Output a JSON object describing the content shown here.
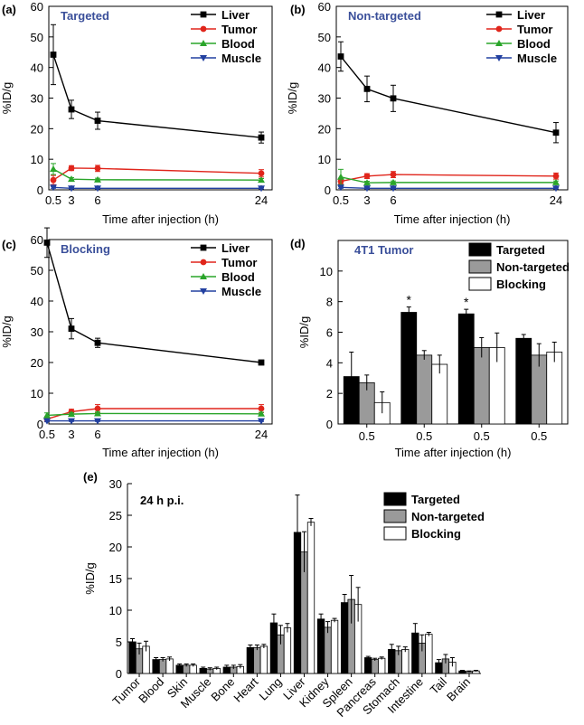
{
  "chart_data": [
    {
      "panel_label": "(a)",
      "type": "line",
      "title": "Targeted",
      "xlabel": "Time after injection (h)",
      "ylabel": "%ID/g",
      "x": [
        0.5,
        3,
        6,
        24
      ],
      "x_ticks": [
        "0.5",
        "3",
        "6",
        "24"
      ],
      "ylim": [
        0,
        60
      ],
      "y_ticks": [
        "0",
        "10",
        "20",
        "30",
        "40",
        "50",
        "60"
      ],
      "legend_position": "top-right",
      "series": [
        {
          "name": "Liver",
          "marker": "square",
          "color": "#000000",
          "values": [
            44.2,
            26.3,
            22.6,
            17.1
          ],
          "errors": [
            9.8,
            3.0,
            2.8,
            1.8
          ]
        },
        {
          "name": "Tumor",
          "marker": "circle",
          "color": "#e0251b",
          "values": [
            3.2,
            7.1,
            7.0,
            5.4
          ],
          "errors": [
            1.5,
            0.8,
            1.0,
            1.2
          ]
        },
        {
          "name": "Blood",
          "marker": "triangle-up",
          "color": "#2aa52a",
          "values": [
            6.8,
            3.5,
            3.3,
            3.2
          ],
          "errors": [
            1.8,
            0.5,
            0.5,
            0.5
          ]
        },
        {
          "name": "Muscle",
          "marker": "triangle-down",
          "color": "#2240a0",
          "values": [
            0.8,
            0.5,
            0.5,
            0.5
          ],
          "errors": [
            0.3,
            0.2,
            0.2,
            0.2
          ]
        }
      ]
    },
    {
      "panel_label": "(b)",
      "type": "line",
      "title": "Non-targeted",
      "xlabel": "Time after injection (h)",
      "ylabel": "%ID/g",
      "x": [
        0.5,
        3,
        6,
        24
      ],
      "x_ticks": [
        "0.5",
        "3",
        "6",
        "24"
      ],
      "ylim": [
        0,
        60
      ],
      "y_ticks": [
        "0",
        "10",
        "20",
        "30",
        "40",
        "50",
        "60"
      ],
      "legend_position": "top-right",
      "series": [
        {
          "name": "Liver",
          "marker": "square",
          "color": "#000000",
          "values": [
            43.6,
            33.0,
            29.9,
            18.7
          ],
          "errors": [
            4.8,
            4.2,
            4.3,
            3.3
          ]
        },
        {
          "name": "Tumor",
          "marker": "circle",
          "color": "#e0251b",
          "values": [
            2.8,
            4.5,
            5.0,
            4.5
          ],
          "errors": [
            0.9,
            0.8,
            1.0,
            1.0
          ]
        },
        {
          "name": "Blood",
          "marker": "triangle-up",
          "color": "#2aa52a",
          "values": [
            4.2,
            2.3,
            2.4,
            2.4
          ],
          "errors": [
            2.5,
            0.5,
            0.5,
            0.5
          ]
        },
        {
          "name": "Muscle",
          "marker": "triangle-down",
          "color": "#2240a0",
          "values": [
            0.8,
            0.5,
            0.5,
            0.5
          ],
          "errors": [
            0.3,
            0.2,
            0.2,
            0.2
          ]
        }
      ]
    },
    {
      "panel_label": "(c)",
      "type": "line",
      "title": "Blocking",
      "xlabel": "Time after injection (h)",
      "ylabel": "%ID/g",
      "x": [
        0.5,
        3,
        6,
        24
      ],
      "x_ticks": [
        "0.5",
        "3",
        "6",
        "24"
      ],
      "ylim": [
        0,
        60
      ],
      "y_ticks": [
        "0",
        "10",
        "20",
        "30",
        "40",
        "50",
        "60"
      ],
      "legend_position": "top-right",
      "series": [
        {
          "name": "Liver",
          "marker": "square",
          "color": "#000000",
          "values": [
            59.0,
            31.0,
            26.4,
            20.0
          ],
          "errors": [
            4.8,
            3.3,
            1.5,
            0.6
          ]
        },
        {
          "name": "Tumor",
          "marker": "circle",
          "color": "#e0251b",
          "values": [
            1.6,
            4.0,
            5.0,
            5.0
          ],
          "errors": [
            0.8,
            0.8,
            1.3,
            1.3
          ]
        },
        {
          "name": "Blood",
          "marker": "triangle-up",
          "color": "#2aa52a",
          "values": [
            2.8,
            3.2,
            3.4,
            3.3
          ],
          "errors": [
            0.8,
            0.5,
            0.5,
            0.5
          ]
        },
        {
          "name": "Muscle",
          "marker": "triangle-down",
          "color": "#2240a0",
          "values": [
            1.0,
            1.0,
            1.0,
            1.0
          ],
          "errors": [
            0.3,
            0.2,
            0.2,
            0.2
          ]
        }
      ]
    },
    {
      "panel_label": "(d)",
      "type": "bar",
      "title": "4T1 Tumor",
      "xlabel": "Time after injection (h)",
      "ylabel": "%ID/g",
      "categories": [
        "0.5",
        "0.5",
        "0.5",
        "0.5"
      ],
      "ylim": [
        0,
        12
      ],
      "y_ticks": [
        "0",
        "2",
        "4",
        "6",
        "8",
        "10"
      ],
      "legend_position": "top-right",
      "annotations": [
        "*",
        "*"
      ],
      "annotated_categories": [
        1,
        2
      ],
      "series": [
        {
          "name": "Targeted",
          "fill": "#000000",
          "values": [
            3.1,
            7.3,
            7.2,
            5.6
          ],
          "errors": [
            1.6,
            0.35,
            0.3,
            0.25
          ]
        },
        {
          "name": "Non-targeted",
          "fill": "#9a9a9a",
          "values": [
            2.7,
            4.5,
            5.0,
            4.5
          ],
          "errors": [
            0.5,
            0.3,
            0.65,
            0.75
          ]
        },
        {
          "name": "Blocking",
          "fill": "#ffffff",
          "values": [
            1.4,
            3.9,
            5.0,
            4.7
          ],
          "errors": [
            0.7,
            0.6,
            0.95,
            0.65
          ]
        }
      ]
    },
    {
      "panel_label": "(e)",
      "type": "bar",
      "title": "24 h p.i.",
      "xlabel": "",
      "ylabel": "%ID/g",
      "categories": [
        "Tumor",
        "Blood",
        "Skin",
        "Muscle",
        "Bone",
        "Heart",
        "Lung",
        "Liver",
        "Kidney",
        "Spleen",
        "Pancreas",
        "Stomach",
        "Intestine",
        "Tail",
        "Brain"
      ],
      "ylim": [
        0,
        30
      ],
      "y_ticks": [
        "0",
        "5",
        "10",
        "15",
        "20",
        "25",
        "30"
      ],
      "legend_position": "top-right",
      "series": [
        {
          "name": "Targeted",
          "fill": "#000000",
          "values": [
            5.0,
            2.2,
            1.3,
            0.8,
            1.0,
            4.1,
            8.0,
            22.3,
            8.6,
            11.2,
            2.5,
            3.8,
            6.4,
            1.7,
            0.4
          ],
          "errors": [
            0.5,
            0.3,
            0.2,
            0.2,
            0.3,
            0.4,
            1.4,
            5.9,
            0.8,
            1.3,
            0.2,
            0.8,
            1.5,
            0.5,
            0.1
          ]
        },
        {
          "name": "Non-targeted",
          "fill": "#9a9a9a",
          "values": [
            3.9,
            2.2,
            1.3,
            0.7,
            1.0,
            4.1,
            6.1,
            19.2,
            7.3,
            11.7,
            2.2,
            3.6,
            4.8,
            2.3,
            0.3
          ],
          "errors": [
            0.9,
            0.3,
            0.2,
            0.2,
            0.3,
            0.4,
            1.5,
            3.2,
            0.9,
            3.8,
            0.2,
            0.7,
            1.3,
            0.7,
            0.1
          ]
        },
        {
          "name": "Blocking",
          "fill": "#ffffff",
          "values": [
            4.3,
            2.3,
            1.3,
            0.8,
            1.1,
            4.3,
            7.2,
            23.9,
            8.4,
            10.9,
            2.4,
            3.8,
            6.2,
            1.8,
            0.4
          ],
          "errors": [
            0.8,
            0.3,
            0.2,
            0.2,
            0.3,
            0.3,
            0.7,
            0.6,
            0.3,
            2.7,
            0.2,
            0.4,
            0.3,
            0.7,
            0.1
          ]
        }
      ]
    }
  ]
}
